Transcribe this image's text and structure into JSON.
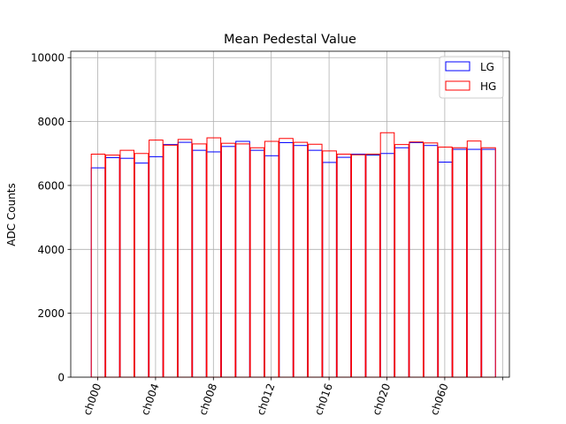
{
  "chart_data": {
    "type": "bar",
    "title": "Mean Pedestal Value",
    "xlabel": "",
    "ylabel": "ADC Counts",
    "ylim": [
      0,
      10200
    ],
    "yticks": [
      0,
      2000,
      4000,
      6000,
      8000,
      10000
    ],
    "xtick_labels": [
      "ch000",
      "ch004",
      "ch008",
      "ch012",
      "ch016",
      "ch020",
      "ch060"
    ],
    "xtick_positions": [
      0,
      4,
      8,
      12,
      16,
      20,
      24
    ],
    "extra_xtick_positions": [
      28
    ],
    "n_bins": 28,
    "grid": true,
    "legend_position": "top-right",
    "series": [
      {
        "name": "LG",
        "color": "#0000ff",
        "values": [
          6550,
          6870,
          6850,
          6700,
          6900,
          7280,
          7350,
          7100,
          7050,
          7220,
          7380,
          7100,
          6930,
          7340,
          7250,
          7100,
          6720,
          6880,
          6980,
          6950,
          7000,
          7180,
          7340,
          7250,
          6730,
          7130,
          7130,
          7130
        ]
      },
      {
        "name": "HG",
        "color": "#ff0000",
        "values": [
          6980,
          6950,
          7100,
          7000,
          7420,
          7260,
          7440,
          7300,
          7490,
          7320,
          7300,
          7180,
          7380,
          7470,
          7350,
          7290,
          7080,
          6980,
          6960,
          6980,
          7650,
          7280,
          7360,
          7330,
          7200,
          7180,
          7390,
          7180
        ]
      }
    ]
  }
}
